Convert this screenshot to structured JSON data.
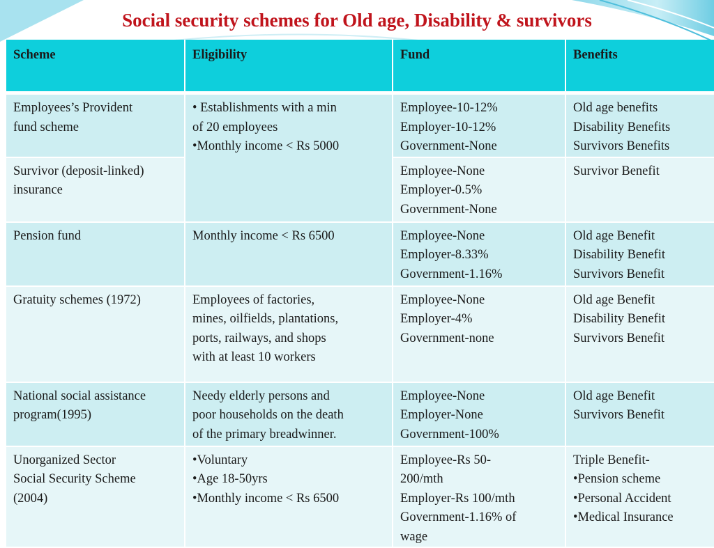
{
  "title": "Social security schemes for Old age, Disability & survivors",
  "colors": {
    "title": "#c0141c",
    "header": "#0ecfdc",
    "row_dark": "#cdeef2",
    "row_light": "#e6f6f8"
  },
  "columns": [
    "Scheme",
    "Eligibility",
    "Fund",
    "Benefits"
  ],
  "rows": [
    {
      "scheme": [
        "Employees’s Provident",
        "fund scheme"
      ],
      "eligibility": [
        "• Establishments with a min",
        "of 20 employees",
        "•Monthly income < Rs 5000"
      ],
      "fund": [
        "Employee-10-12%",
        "Employer-10-12%",
        "Government-None"
      ],
      "benefits": [
        "Old age benefits",
        "Disability Benefits",
        "Survivors Benefits"
      ]
    },
    {
      "scheme": [
        "Survivor (deposit-linked)",
        "insurance"
      ],
      "fund": [
        "Employee-None",
        "Employer-0.5%",
        "Government-None"
      ],
      "benefits": [
        "Survivor Benefit"
      ]
    },
    {
      "scheme": [
        "Pension fund"
      ],
      "eligibility": [
        "Monthly income < Rs 6500"
      ],
      "fund": [
        "Employee-None",
        "Employer-8.33%",
        "Government-1.16%"
      ],
      "benefits": [
        "Old age Benefit",
        "Disability Benefit",
        "Survivors Benefit"
      ]
    },
    {
      "scheme": [
        "Gratuity schemes (1972)"
      ],
      "eligibility": [
        "Employees of factories,",
        "mines, oilfields, plantations,",
        "ports, railways, and shops",
        "with at least 10 workers"
      ],
      "fund": [
        "Employee-None",
        "Employer-4%",
        "Government-none"
      ],
      "benefits": [
        "Old age Benefit",
        "Disability Benefit",
        "Survivors Benefit"
      ]
    },
    {
      "scheme": [
        "National social assistance",
        "program(1995)"
      ],
      "eligibility": [
        "Needy elderly persons and",
        "poor households on the death",
        "of the primary breadwinner."
      ],
      "fund": [
        "Employee-None",
        "Employer-None",
        "Government-100%"
      ],
      "benefits": [
        "Old age Benefit",
        "Survivors Benefit"
      ]
    },
    {
      "scheme": [
        "Unorganized Sector",
        "Social Security Scheme",
        "(2004)"
      ],
      "eligibility": [
        "•Voluntary",
        "•Age 18-50yrs",
        "•Monthly income < Rs 6500"
      ],
      "fund": [
        "Employee-Rs 50-",
        "200/mth",
        "Employer-Rs 100/mth",
        "Government-1.16% of",
        "wage"
      ],
      "benefits": [
        "Triple Benefit-",
        "•Pension scheme",
        "•Personal Accident",
        "•Medical Insurance"
      ]
    }
  ]
}
